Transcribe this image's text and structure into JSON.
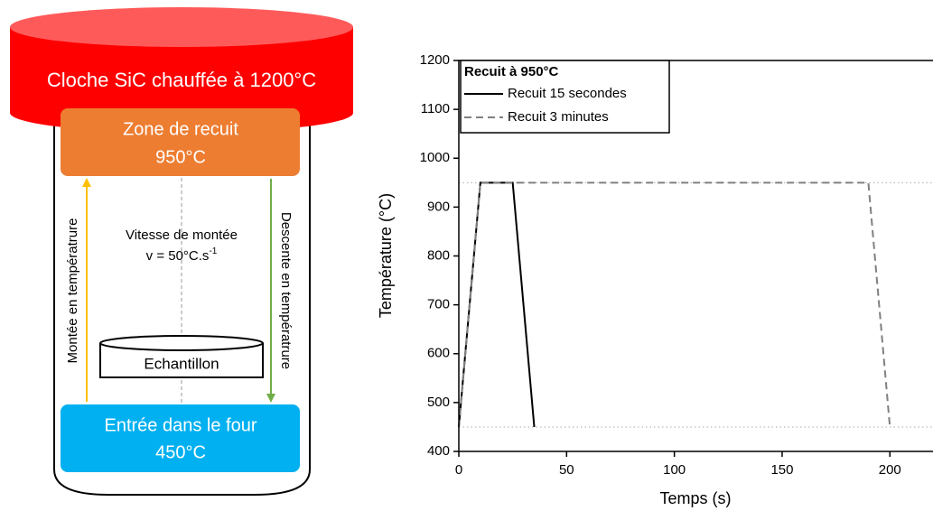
{
  "diagram": {
    "cloche": "Cloche SiC chauffée à 1200°C",
    "zone_recuit": {
      "label": "Zone de recuit",
      "temperature": "950°C"
    },
    "montee": "Montée en températrure",
    "descente": "Descente en températrure",
    "vitesse": {
      "label": "Vitesse de montée",
      "formula": "v = 50°C.s",
      "exponent": "-1"
    },
    "echantillon": "Echantillon",
    "entree": {
      "label": "Entrée dans le four",
      "temperature": "450°C"
    }
  },
  "chart_data": {
    "type": "line",
    "x_label": "Temps (s)",
    "y_label": "Température (°C)",
    "legend_title": "Recuit à 950°C",
    "legend": "top-left",
    "xlim": [
      0,
      220
    ],
    "ylim": [
      400,
      1200
    ],
    "xticks": [
      0,
      50,
      100,
      150,
      200
    ],
    "yticks": [
      400,
      500,
      600,
      700,
      800,
      900,
      1000,
      1100,
      1200
    ],
    "hlines": [
      950,
      450
    ],
    "series": [
      {
        "name": "Recuit 15 secondes",
        "color": "#000000",
        "dash": false,
        "x": [
          0,
          10,
          25,
          35
        ],
        "values": [
          450,
          950,
          950,
          450
        ]
      },
      {
        "name": "Recuit 3 minutes",
        "color": "#808080",
        "dash": true,
        "x": [
          0,
          10,
          190,
          200
        ],
        "values": [
          450,
          950,
          950,
          450
        ]
      }
    ]
  }
}
